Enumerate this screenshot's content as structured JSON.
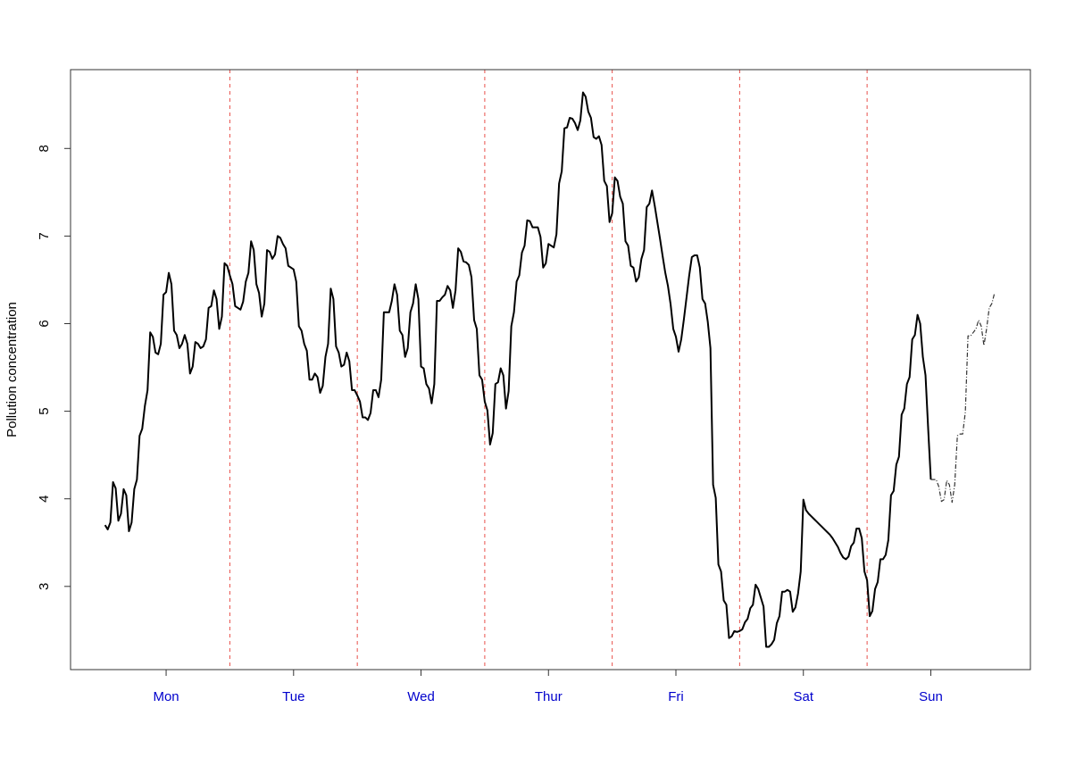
{
  "chart_data": {
    "type": "line",
    "y_label": "Pollution concentration",
    "series": [
      {
        "color": "#000000",
        "values": [
          3.7,
          3.65,
          3.73,
          4.19,
          4.12,
          3.75,
          3.83,
          4.11,
          4.04,
          3.63,
          3.73,
          4.11,
          4.22,
          4.72,
          4.8,
          5.06,
          5.24,
          5.9,
          5.85,
          5.67,
          5.65,
          5.77,
          6.33,
          6.36,
          6.58,
          6.45,
          5.92,
          5.87,
          5.72,
          5.77,
          5.87,
          5.77,
          5.43,
          5.51,
          5.79,
          5.77,
          5.72,
          5.74,
          5.82,
          6.18,
          6.2,
          6.38,
          6.28,
          5.94,
          6.08,
          6.69,
          6.66,
          6.55,
          6.45,
          6.2,
          6.18,
          6.16,
          6.25,
          6.48,
          6.58,
          6.94,
          6.84,
          6.45,
          6.35,
          6.08,
          6.23,
          6.84,
          6.82,
          6.74,
          6.79,
          7.0,
          6.98,
          6.91,
          6.86,
          6.66,
          6.64,
          6.62,
          6.48,
          5.97,
          5.92,
          5.77,
          5.69,
          5.36,
          5.36,
          5.43,
          5.39,
          5.21,
          5.29,
          5.62,
          5.77,
          6.4,
          6.28,
          5.74,
          5.67,
          5.51,
          5.53,
          5.67,
          5.57,
          5.24,
          5.24,
          5.18,
          5.11,
          4.93,
          4.93,
          4.9,
          4.98,
          5.24,
          5.24,
          5.16,
          5.36,
          6.13,
          6.13,
          6.13,
          6.26,
          6.45,
          6.33,
          5.92,
          5.87,
          5.62,
          5.72,
          6.13,
          6.23,
          6.45,
          6.28,
          5.51,
          5.49,
          5.31,
          5.26,
          5.09,
          5.31,
          6.26,
          6.26,
          6.3,
          6.33,
          6.43,
          6.38,
          6.18,
          6.38,
          6.86,
          6.82,
          6.71,
          6.7,
          6.67,
          6.53,
          6.04,
          5.94,
          5.41,
          5.36,
          5.11,
          5.01,
          4.62,
          4.75,
          5.31,
          5.33,
          5.49,
          5.41,
          5.03,
          5.23,
          5.97,
          6.13,
          6.48,
          6.55,
          6.81,
          6.89,
          7.18,
          7.17,
          7.1,
          7.1,
          7.1,
          6.99,
          6.64,
          6.69,
          6.91,
          6.89,
          6.87,
          7.02,
          7.6,
          7.74,
          8.23,
          8.24,
          8.35,
          8.34,
          8.29,
          8.21,
          8.32,
          8.64,
          8.59,
          8.42,
          8.35,
          8.13,
          8.11,
          8.14,
          8.04,
          7.63,
          7.57,
          7.16,
          7.26,
          7.67,
          7.63,
          7.45,
          7.37,
          6.94,
          6.89,
          6.66,
          6.64,
          6.48,
          6.53,
          6.74,
          6.84,
          7.33,
          7.37,
          7.52,
          7.35,
          7.16,
          6.97,
          6.77,
          6.58,
          6.43,
          6.22,
          5.94,
          5.85,
          5.68,
          5.82,
          6.05,
          6.3,
          6.55,
          6.76,
          6.78,
          6.78,
          6.64,
          6.28,
          6.23,
          6.02,
          5.72,
          4.16,
          4.01,
          3.25,
          3.17,
          2.84,
          2.79,
          2.41,
          2.43,
          2.49,
          2.48,
          2.49,
          2.51,
          2.59,
          2.63,
          2.75,
          2.79,
          3.02,
          2.97,
          2.87,
          2.77,
          2.31,
          2.31,
          2.34,
          2.39,
          2.58,
          2.66,
          2.94,
          2.94,
          2.96,
          2.94,
          2.71,
          2.76,
          2.92,
          3.17,
          3.99,
          3.87,
          3.83,
          3.8,
          3.77,
          3.74,
          3.71,
          3.68,
          3.65,
          3.62,
          3.59,
          3.55,
          3.5,
          3.45,
          3.38,
          3.33,
          3.31,
          3.34,
          3.46,
          3.5,
          3.66,
          3.66,
          3.55,
          3.17,
          3.07,
          2.66,
          2.72,
          2.97,
          3.05,
          3.31,
          3.31,
          3.36,
          3.53,
          4.04,
          4.09,
          4.39,
          4.48,
          4.96,
          5.03,
          5.31,
          5.39,
          5.82,
          5.87,
          6.1,
          6.0,
          5.62,
          5.41,
          4.8,
          4.22
        ]
      },
      {
        "color": "#333333",
        "dash": true,
        "x": [
          311,
          312,
          313,
          314,
          315,
          316,
          317,
          318,
          319,
          320,
          321,
          322,
          323,
          324,
          325,
          326,
          327,
          328,
          329,
          330,
          331,
          332,
          333,
          334,
          335
        ],
        "values": [
          4.22,
          4.22,
          4.22,
          4.14,
          3.97,
          3.99,
          4.21,
          4.16,
          3.96,
          4.16,
          4.72,
          4.74,
          4.74,
          4.99,
          5.86,
          5.86,
          5.9,
          5.94,
          6.04,
          5.97,
          5.75,
          5.94,
          6.18,
          6.23,
          6.35
        ]
      }
    ],
    "xlim": [
      -13,
      348.5
    ],
    "xticks": [
      {
        "value": 23,
        "label": "Mon"
      },
      {
        "value": 71,
        "label": "Tue"
      },
      {
        "value": 119,
        "label": "Wed"
      },
      {
        "value": 167,
        "label": "Thur"
      },
      {
        "value": 215,
        "label": "Fri"
      },
      {
        "value": 263,
        "label": "Sat"
      },
      {
        "value": 311,
        "label": "Sun"
      }
    ],
    "xtick_color": "#0000cc",
    "vlines": [
      47,
      95,
      143,
      191,
      239,
      287
    ],
    "vline_color": "#e8504a",
    "ylim": [
      2.05,
      8.9
    ],
    "yticks": [
      3,
      4,
      5,
      6,
      7,
      8
    ]
  }
}
